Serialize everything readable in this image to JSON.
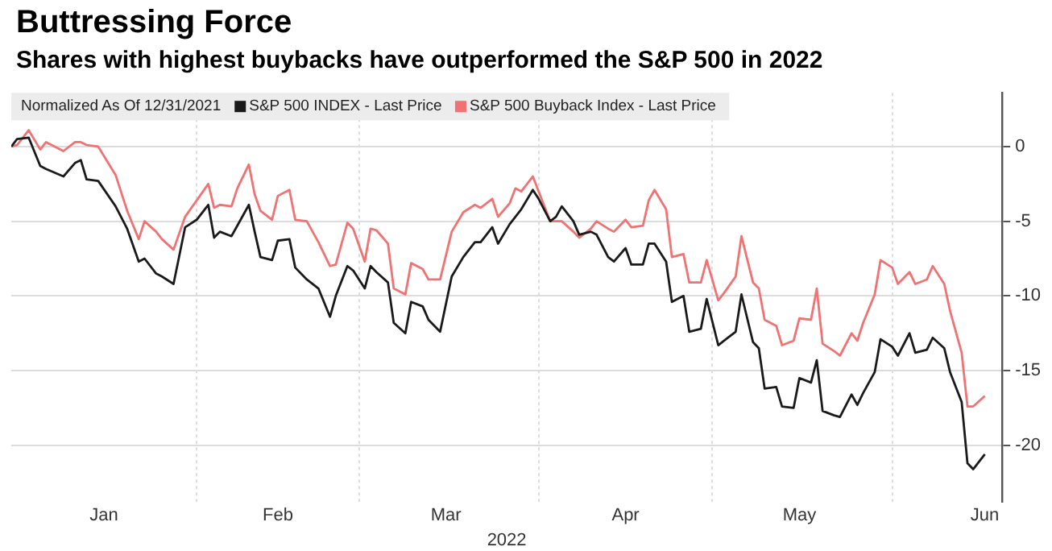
{
  "chart_data": {
    "type": "line",
    "title": "Buttressing Force",
    "subtitle": "Shares with highest buybacks have outperformed the S&P 500 in 2022",
    "xlabel": "2022",
    "annotations": [
      "Normalized As Of 12/31/2021"
    ],
    "x": [
      "2021-12-31",
      "2022-01-01",
      "2022-01-03",
      "2022-01-05",
      "2022-01-06",
      "2022-01-09",
      "2022-01-11",
      "2022-01-12",
      "2022-01-13",
      "2022-01-15",
      "2022-01-18",
      "2022-01-20",
      "2022-01-22",
      "2022-01-23",
      "2022-01-25",
      "2022-01-26",
      "2022-01-28",
      "2022-01-30",
      "2022-02-01",
      "2022-02-03",
      "2022-02-04",
      "2022-02-05",
      "2022-02-07",
      "2022-02-08",
      "2022-02-10",
      "2022-02-11",
      "2022-02-12",
      "2022-02-14",
      "2022-02-15",
      "2022-02-17",
      "2022-02-18",
      "2022-02-20",
      "2022-02-22",
      "2022-02-24",
      "2022-02-25",
      "2022-02-27",
      "2022-02-28",
      "2022-03-02",
      "2022-03-03",
      "2022-03-04",
      "2022-03-06",
      "2022-03-07",
      "2022-03-09",
      "2022-03-10",
      "2022-03-12",
      "2022-03-13",
      "2022-03-15",
      "2022-03-17",
      "2022-03-19",
      "2022-03-21",
      "2022-03-22",
      "2022-03-24",
      "2022-03-25",
      "2022-03-27",
      "2022-03-28",
      "2022-03-29",
      "2022-03-31",
      "2022-04-01",
      "2022-04-03",
      "2022-04-04",
      "2022-04-05",
      "2022-04-07",
      "2022-04-08",
      "2022-04-10",
      "2022-04-11",
      "2022-04-13",
      "2022-04-14",
      "2022-04-16",
      "2022-04-17",
      "2022-04-19",
      "2022-04-20",
      "2022-04-21",
      "2022-04-23",
      "2022-04-24",
      "2022-04-26",
      "2022-04-27",
      "2022-04-29",
      "2022-04-30",
      "2022-05-02",
      "2022-05-03",
      "2022-05-05",
      "2022-05-06",
      "2022-05-08",
      "2022-05-09",
      "2022-05-10",
      "2022-05-12",
      "2022-05-13",
      "2022-05-15",
      "2022-05-16",
      "2022-05-18",
      "2022-05-19",
      "2022-05-20",
      "2022-05-22",
      "2022-05-23",
      "2022-05-25",
      "2022-05-26",
      "2022-05-27",
      "2022-05-29",
      "2022-05-30",
      "2022-06-01",
      "2022-06-02",
      "2022-06-04",
      "2022-06-05",
      "2022-06-07",
      "2022-06-08",
      "2022-06-10",
      "2022-06-11",
      "2022-06-13",
      "2022-06-14",
      "2022-06-15",
      "2022-06-17"
    ],
    "series": [
      {
        "name": "S&P 500 INDEX - Last Price",
        "color": "#1a1a1a",
        "values": [
          0,
          0.5,
          0.6,
          -1.3,
          -1.5,
          -2,
          -1.1,
          -0.9,
          -2.2,
          -2.3,
          -4,
          -5.5,
          -7.7,
          -7.5,
          -8.5,
          -8.7,
          -9.2,
          -5.4,
          -4.9,
          -3.9,
          -6.1,
          -5.7,
          -6,
          -5.3,
          -3.9,
          -5.7,
          -7.4,
          -7.6,
          -6.3,
          -6.2,
          -8.1,
          -8.9,
          -9.5,
          -11.4,
          -10,
          -8,
          -8.3,
          -9.5,
          -8,
          -8.4,
          -9.1,
          -11.8,
          -12.5,
          -10.4,
          -10.7,
          -11.6,
          -12.4,
          -8.7,
          -7.4,
          -6.4,
          -6.4,
          -5.4,
          -6.5,
          -5.2,
          -4.7,
          -4.2,
          -2.9,
          -3.5,
          -5,
          -4.7,
          -4,
          -5,
          -5.9,
          -5.7,
          -5.9,
          -7.4,
          -7.7,
          -6.8,
          -7.9,
          -7.9,
          -6.5,
          -6.5,
          -7.7,
          -10.4,
          -10,
          -12.4,
          -12.2,
          -10.2,
          -13.3,
          -13,
          -12.4,
          -9.9,
          -13.1,
          -13.5,
          -16.2,
          -16.1,
          -17.4,
          -17.5,
          -15.5,
          -15.8,
          -14.3,
          -17.7,
          -18,
          -18.1,
          -16.6,
          -17.3,
          -16.5,
          -15.1,
          -12.9,
          -13.4,
          -14,
          -12.5,
          -13.8,
          -13.6,
          -12.8,
          -13.5,
          -15.1,
          -17.1,
          -21.2,
          -21.6,
          -20.6
        ]
      },
      {
        "name": "S&P 500 Buyback Index - Last Price",
        "color": "#f07272",
        "values": [
          0,
          0.1,
          1.1,
          -0.2,
          0.3,
          -0.3,
          0.3,
          0.3,
          0.1,
          0,
          -1.9,
          -4.3,
          -6.2,
          -5,
          -5.7,
          -6.2,
          -6.9,
          -4.7,
          -3.6,
          -2.5,
          -4.1,
          -3.9,
          -4,
          -2.8,
          -1.2,
          -3.2,
          -4.3,
          -4.9,
          -3.3,
          -2.9,
          -4.9,
          -5,
          -6.4,
          -8,
          -7.9,
          -5.1,
          -5.5,
          -7.7,
          -5.5,
          -5.6,
          -6.5,
          -9.5,
          -9.9,
          -7.8,
          -8.2,
          -8.9,
          -8.9,
          -5.7,
          -4.4,
          -3.9,
          -4.1,
          -3.5,
          -4.7,
          -3.8,
          -2.8,
          -3,
          -2,
          -3,
          -5,
          -5,
          -5,
          -5.7,
          -6.1,
          -5.5,
          -5,
          -5.5,
          -5.7,
          -4.9,
          -5.4,
          -5.3,
          -3.6,
          -2.9,
          -4.2,
          -7.4,
          -7.2,
          -9.1,
          -9.1,
          -7.6,
          -10.3,
          -9.8,
          -8.7,
          -6,
          -9.1,
          -9.5,
          -11.6,
          -12,
          -13.3,
          -13,
          -11.5,
          -11.6,
          -9.5,
          -13.2,
          -13.7,
          -14,
          -12.5,
          -13,
          -11.8,
          -9.9,
          -7.6,
          -8.1,
          -9.2,
          -8.4,
          -9.2,
          -8.9,
          -8,
          -9.2,
          -11,
          -13.8,
          -17.4,
          -17.4,
          -16.7
        ]
      }
    ],
    "xlim": [
      "2021-12-31",
      "2022-06-20"
    ],
    "xticks": [
      {
        "value": "2022-01-16",
        "label": "Jan"
      },
      {
        "value": "2022-02-01",
        "label": null
      },
      {
        "value": "2022-02-15",
        "label": "Feb"
      },
      {
        "value": "2022-03-01",
        "label": null
      },
      {
        "value": "2022-03-16",
        "label": "Mar"
      },
      {
        "value": "2022-04-01",
        "label": null
      },
      {
        "value": "2022-04-16",
        "label": "Apr"
      },
      {
        "value": "2022-05-01",
        "label": null
      },
      {
        "value": "2022-05-16",
        "label": "May"
      },
      {
        "value": "2022-06-01",
        "label": null
      },
      {
        "value": "2022-06-17",
        "label": "Jun"
      }
    ],
    "ylim": [
      -23.8,
      3.6
    ],
    "yticks": [
      -20,
      -15,
      -10,
      -5,
      0
    ],
    "grid": true,
    "legend": "top left",
    "marker": "none",
    "line_style": "solid"
  }
}
